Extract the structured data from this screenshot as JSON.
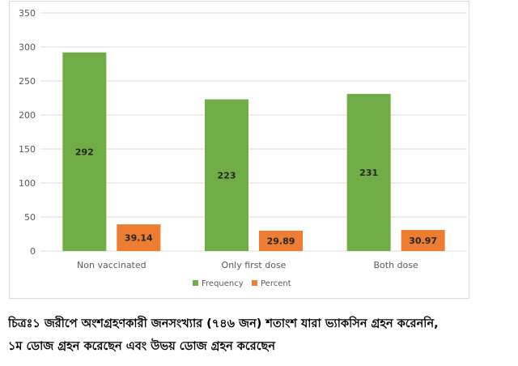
{
  "chart_data": {
    "type": "bar",
    "title": "",
    "xlabel": "",
    "ylabel": "",
    "categories": [
      "Non vaccinated",
      "Only first dose",
      "Both dose"
    ],
    "series": [
      {
        "name": "Frequency",
        "values": [
          292,
          223,
          231
        ],
        "labels": [
          "292",
          "223",
          "231"
        ],
        "color": "#70ad47"
      },
      {
        "name": "Percent",
        "values": [
          39.14,
          29.89,
          30.97
        ],
        "labels": [
          "39.14",
          "29.89",
          "30.97"
        ],
        "color": "#ed7d31"
      }
    ],
    "ylim": [
      0,
      350
    ],
    "yticks": [
      "0",
      "50",
      "100",
      "150",
      "200",
      "250",
      "300",
      "350"
    ],
    "grid": true,
    "legend_position": "bottom"
  },
  "caption": {
    "line1": "চিত্রঃ১ জরীপে অংশগ্রহণকারী জনসংখ্যার (৭৪৬ জন) শতাংশ যারা ভ্যাকসিন গ্রহন করেননি,",
    "line2": "১ম ডোজ গ্রহন করেছেন এবং উভয় ডোজ গ্রহন করেছেন"
  }
}
